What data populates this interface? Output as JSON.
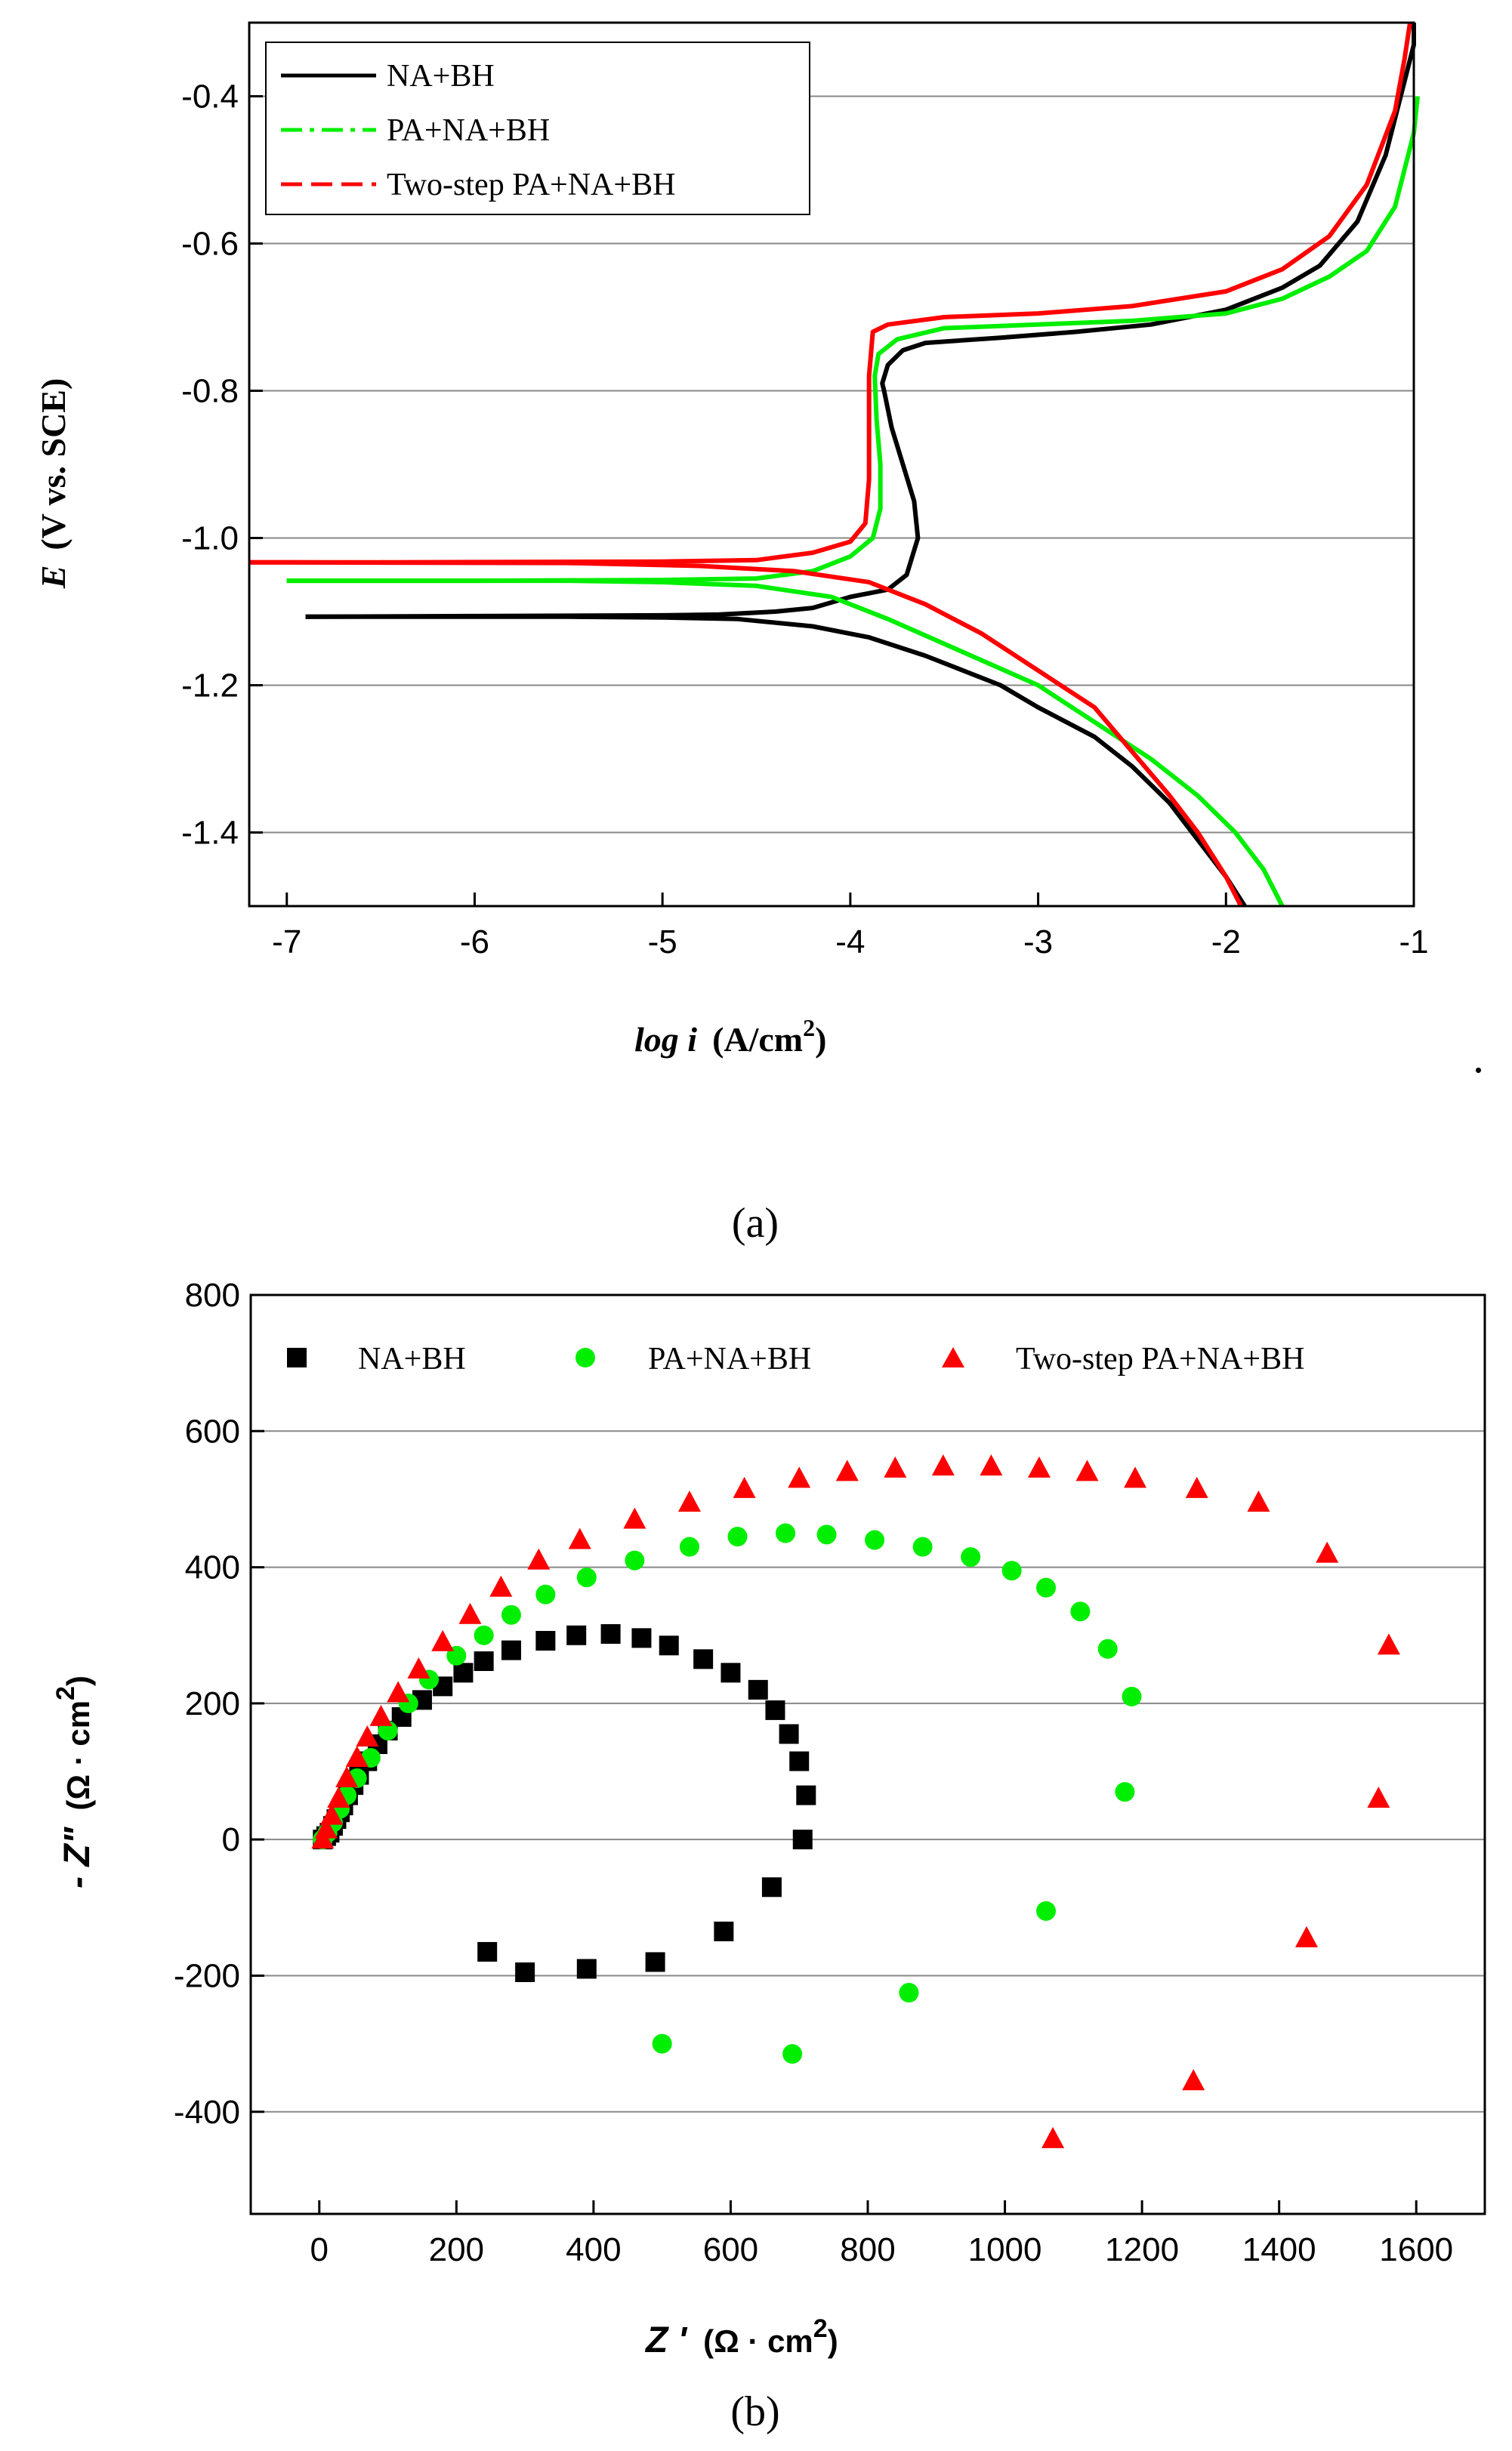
{
  "chart_data": [
    {
      "type": "line",
      "panel_label": "(a)",
      "xlabel_main": "log i",
      "xlabel_unit": "(A/cm",
      "xlabel_sup": "2",
      "xlabel_close": ")",
      "ylabel_main": "E",
      "ylabel_unit": "(V vs. SCE)",
      "xlim": [
        -7.2,
        -1
      ],
      "ylim": [
        -1.5,
        -0.3
      ],
      "xticks": [
        -7,
        -6,
        -5,
        -4,
        -3,
        -2,
        -1
      ],
      "xtick_labels": [
        "-7",
        "-6",
        "-5",
        "-4",
        "-3",
        "-2",
        "-1"
      ],
      "yticks": [
        -0.4,
        -0.6,
        -0.8,
        -1.0,
        -1.2,
        -1.4
      ],
      "ytick_labels": [
        "-0.4",
        "-0.6",
        "-0.8",
        "-1.0",
        "-1.2",
        "-1.4"
      ],
      "grid": true,
      "legend_position": "top-left",
      "series": [
        {
          "name": "NA+BH",
          "color": "#000000",
          "dash": "solid",
          "points": [
            [
              -6.9,
              -1.107
            ],
            [
              -6.0,
              -1.106
            ],
            [
              -5.0,
              -1.105
            ],
            [
              -4.7,
              -1.104
            ],
            [
              -4.4,
              -1.1
            ],
            [
              -4.2,
              -1.095
            ],
            [
              -4.0,
              -1.08
            ],
            [
              -3.8,
              -1.07
            ],
            [
              -3.7,
              -1.05
            ],
            [
              -3.64,
              -1.0
            ],
            [
              -3.66,
              -0.95
            ],
            [
              -3.72,
              -0.9
            ],
            [
              -3.78,
              -0.85
            ],
            [
              -3.82,
              -0.8
            ],
            [
              -3.83,
              -0.79
            ],
            [
              -3.8,
              -0.765
            ],
            [
              -3.72,
              -0.745
            ],
            [
              -3.6,
              -0.735
            ],
            [
              -3.2,
              -0.728
            ],
            [
              -2.8,
              -0.72
            ],
            [
              -2.4,
              -0.71
            ],
            [
              -2.0,
              -0.69
            ],
            [
              -1.7,
              -0.66
            ],
            [
              -1.5,
              -0.63
            ],
            [
              -1.3,
              -0.57
            ],
            [
              -1.15,
              -0.48
            ],
            [
              -1.05,
              -0.38
            ],
            [
              -1.0,
              -0.33
            ],
            [
              -1.0,
              -0.3
            ]
          ],
          "points2": [
            [
              -6.9,
              -1.107
            ],
            [
              -5.5,
              -1.107
            ],
            [
              -5.0,
              -1.108
            ],
            [
              -4.6,
              -1.11
            ],
            [
              -4.2,
              -1.12
            ],
            [
              -3.9,
              -1.135
            ],
            [
              -3.6,
              -1.16
            ],
            [
              -3.2,
              -1.2
            ],
            [
              -3.0,
              -1.23
            ],
            [
              -2.7,
              -1.27
            ],
            [
              -2.5,
              -1.31
            ],
            [
              -2.3,
              -1.36
            ],
            [
              -2.15,
              -1.41
            ],
            [
              -2.0,
              -1.46
            ],
            [
              -1.9,
              -1.5
            ]
          ]
        },
        {
          "name": "PA+NA+BH",
          "color": "#00ee00",
          "dash": "dashdot",
          "points": [
            [
              -7.0,
              -1.058
            ],
            [
              -6.0,
              -1.058
            ],
            [
              -5.0,
              -1.057
            ],
            [
              -4.5,
              -1.055
            ],
            [
              -4.2,
              -1.045
            ],
            [
              -4.0,
              -1.025
            ],
            [
              -3.88,
              -1.0
            ],
            [
              -3.84,
              -0.96
            ],
            [
              -3.84,
              -0.9
            ],
            [
              -3.86,
              -0.84
            ],
            [
              -3.87,
              -0.78
            ],
            [
              -3.85,
              -0.75
            ],
            [
              -3.75,
              -0.73
            ],
            [
              -3.5,
              -0.715
            ],
            [
              -3.0,
              -0.71
            ],
            [
              -2.5,
              -0.705
            ],
            [
              -2.0,
              -0.695
            ],
            [
              -1.7,
              -0.675
            ],
            [
              -1.45,
              -0.645
            ],
            [
              -1.25,
              -0.61
            ],
            [
              -1.1,
              -0.55
            ],
            [
              -1.0,
              -0.45
            ],
            [
              -0.98,
              -0.4
            ]
          ],
          "points2": [
            [
              -7.0,
              -1.058
            ],
            [
              -5.5,
              -1.058
            ],
            [
              -5.0,
              -1.06
            ],
            [
              -4.5,
              -1.065
            ],
            [
              -4.1,
              -1.08
            ],
            [
              -3.8,
              -1.11
            ],
            [
              -3.4,
              -1.155
            ],
            [
              -3.0,
              -1.2
            ],
            [
              -2.7,
              -1.25
            ],
            [
              -2.4,
              -1.3
            ],
            [
              -2.15,
              -1.35
            ],
            [
              -1.95,
              -1.4
            ],
            [
              -1.8,
              -1.45
            ],
            [
              -1.7,
              -1.5
            ]
          ]
        },
        {
          "name": "Two-step PA+NA+BH",
          "color": "#ff0000",
          "dash": "dashed",
          "points": [
            [
              -7.2,
              -1.033
            ],
            [
              -6.5,
              -1.033
            ],
            [
              -5.0,
              -1.032
            ],
            [
              -4.5,
              -1.03
            ],
            [
              -4.2,
              -1.02
            ],
            [
              -4.0,
              -1.005
            ],
            [
              -3.92,
              -0.98
            ],
            [
              -3.9,
              -0.92
            ],
            [
              -3.9,
              -0.85
            ],
            [
              -3.9,
              -0.78
            ],
            [
              -3.88,
              -0.72
            ],
            [
              -3.8,
              -0.71
            ],
            [
              -3.5,
              -0.7
            ],
            [
              -3.0,
              -0.695
            ],
            [
              -2.5,
              -0.685
            ],
            [
              -2.0,
              -0.665
            ],
            [
              -1.7,
              -0.635
            ],
            [
              -1.45,
              -0.59
            ],
            [
              -1.25,
              -0.52
            ],
            [
              -1.1,
              -0.42
            ],
            [
              -1.05,
              -0.35
            ],
            [
              -1.02,
              -0.3
            ]
          ],
          "points2": [
            [
              -7.2,
              -1.033
            ],
            [
              -5.5,
              -1.034
            ],
            [
              -4.8,
              -1.038
            ],
            [
              -4.3,
              -1.045
            ],
            [
              -3.9,
              -1.06
            ],
            [
              -3.6,
              -1.09
            ],
            [
              -3.3,
              -1.13
            ],
            [
              -3.0,
              -1.18
            ],
            [
              -2.7,
              -1.23
            ],
            [
              -2.5,
              -1.29
            ],
            [
              -2.3,
              -1.35
            ],
            [
              -2.15,
              -1.4
            ],
            [
              -2.0,
              -1.46
            ],
            [
              -1.92,
              -1.5
            ]
          ]
        }
      ]
    },
    {
      "type": "scatter",
      "panel_label": "(b)",
      "xlabel_main": "Z '",
      "xlabel_unit": "(Ω · cm",
      "xlabel_sup": "2",
      "xlabel_close": ")",
      "ylabel_main": "- Z\"",
      "ylabel_unit": "(Ω · cm",
      "ylabel_sup": "2",
      "ylabel_close": ")",
      "xlim": [
        -100,
        1700
      ],
      "ylim": [
        -550,
        800
      ],
      "xticks": [
        0,
        200,
        400,
        600,
        800,
        1000,
        1200,
        1400,
        1600
      ],
      "xtick_labels": [
        "0",
        "200",
        "400",
        "600",
        "800",
        "1000",
        "1200",
        "1400",
        "1600"
      ],
      "yticks": [
        800,
        600,
        400,
        200,
        0,
        -200,
        -400
      ],
      "ytick_labels": [
        "800",
        "600",
        "400",
        "200",
        "0",
        "-200",
        "-400"
      ],
      "grid": true,
      "legend_position": "top",
      "series": [
        {
          "name": "NA+BH",
          "color": "#000000",
          "marker": "square",
          "points": [
            [
              5,
              0
            ],
            [
              10,
              5
            ],
            [
              15,
              10
            ],
            [
              20,
              20
            ],
            [
              25,
              30
            ],
            [
              30,
              40
            ],
            [
              35,
              50
            ],
            [
              42,
              65
            ],
            [
              50,
              80
            ],
            [
              58,
              95
            ],
            [
              70,
              115
            ],
            [
              85,
              140
            ],
            [
              100,
              160
            ],
            [
              120,
              180
            ],
            [
              150,
              205
            ],
            [
              180,
              225
            ],
            [
              210,
              245
            ],
            [
              240,
              262
            ],
            [
              280,
              278
            ],
            [
              330,
              292
            ],
            [
              375,
              300
            ],
            [
              425,
              302
            ],
            [
              470,
              296
            ],
            [
              510,
              285
            ],
            [
              560,
              265
            ],
            [
              600,
              245
            ],
            [
              640,
              220
            ],
            [
              665,
              190
            ],
            [
              685,
              155
            ],
            [
              700,
              115
            ],
            [
              710,
              65
            ],
            [
              705,
              0
            ],
            [
              660,
              -70
            ],
            [
              590,
              -135
            ],
            [
              490,
              -180
            ],
            [
              390,
              -190
            ],
            [
              300,
              -195
            ],
            [
              245,
              -165
            ]
          ]
        },
        {
          "name": "PA+NA+BH",
          "color": "#00ee00",
          "marker": "circle",
          "points": [
            [
              5,
              0
            ],
            [
              12,
              10
            ],
            [
              20,
              25
            ],
            [
              30,
              45
            ],
            [
              40,
              65
            ],
            [
              55,
              90
            ],
            [
              75,
              120
            ],
            [
              100,
              160
            ],
            [
              130,
              200
            ],
            [
              160,
              235
            ],
            [
              200,
              270
            ],
            [
              240,
              300
            ],
            [
              280,
              330
            ],
            [
              330,
              360
            ],
            [
              390,
              385
            ],
            [
              460,
              410
            ],
            [
              540,
              430
            ],
            [
              610,
              445
            ],
            [
              680,
              450
            ],
            [
              740,
              448
            ],
            [
              810,
              440
            ],
            [
              880,
              430
            ],
            [
              950,
              415
            ],
            [
              1010,
              395
            ],
            [
              1060,
              370
            ],
            [
              1110,
              335
            ],
            [
              1150,
              280
            ],
            [
              1185,
              210
            ],
            [
              1175,
              70
            ],
            [
              1060,
              -105
            ],
            [
              860,
              -225
            ],
            [
              690,
              -315
            ],
            [
              500,
              -300
            ]
          ]
        },
        {
          "name": "Two-step PA+NA+BH",
          "color": "#ff0000",
          "marker": "triangle",
          "points": [
            [
              5,
              0
            ],
            [
              10,
              15
            ],
            [
              18,
              35
            ],
            [
              28,
              60
            ],
            [
              40,
              90
            ],
            [
              55,
              120
            ],
            [
              70,
              150
            ],
            [
              90,
              180
            ],
            [
              115,
              215
            ],
            [
              145,
              250
            ],
            [
              180,
              290
            ],
            [
              220,
              330
            ],
            [
              265,
              370
            ],
            [
              320,
              410
            ],
            [
              380,
              440
            ],
            [
              460,
              470
            ],
            [
              540,
              495
            ],
            [
              620,
              515
            ],
            [
              700,
              530
            ],
            [
              770,
              540
            ],
            [
              840,
              545
            ],
            [
              910,
              548
            ],
            [
              980,
              548
            ],
            [
              1050,
              545
            ],
            [
              1120,
              540
            ],
            [
              1190,
              530
            ],
            [
              1280,
              515
            ],
            [
              1370,
              495
            ],
            [
              1470,
              420
            ],
            [
              1560,
              285
            ],
            [
              1545,
              60
            ],
            [
              1440,
              -145
            ],
            [
              1275,
              -355
            ],
            [
              1070,
              -440
            ]
          ]
        }
      ]
    }
  ]
}
